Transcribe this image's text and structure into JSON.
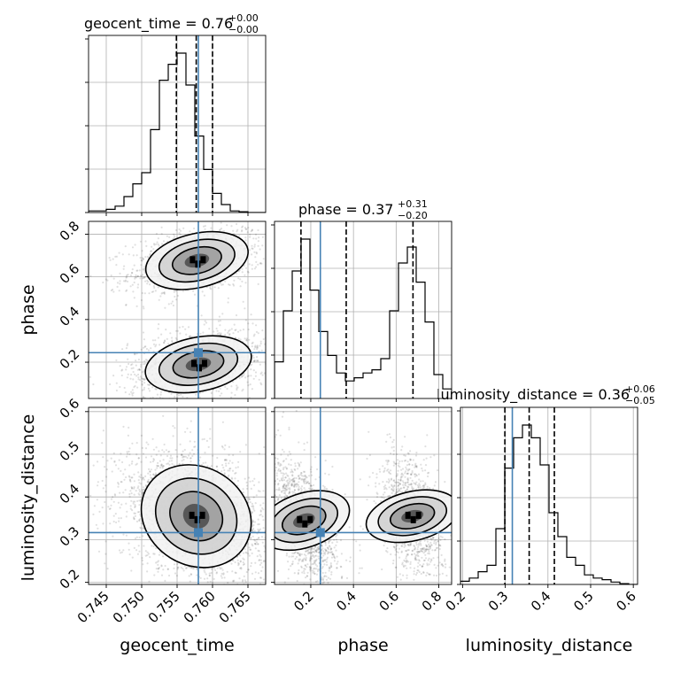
{
  "chart_data": {
    "type": "corner",
    "params": [
      {
        "name": "geocent_time",
        "axis_label": "geocent_time",
        "title_prefix": "geocent_time = 0.76",
        "title_plus": "+0.00",
        "title_minus": "−0.00",
        "range": [
          0.7425,
          0.7675
        ],
        "ticks": [
          "0.745",
          "0.750",
          "0.755",
          "0.760",
          "0.765"
        ],
        "tick_values": [
          0.745,
          0.75,
          0.755,
          0.76,
          0.765
        ],
        "truth": 0.758,
        "quantiles": [
          0.7549,
          0.7577,
          0.76
        ],
        "hist": {
          "edges_start": 0.7425,
          "bin_width": 0.00125,
          "counts": [
            0.01,
            0.01,
            0.02,
            0.04,
            0.1,
            0.18,
            0.25,
            0.52,
            0.83,
            0.93,
            1.0,
            0.8,
            0.48,
            0.27,
            0.12,
            0.05,
            0.01,
            0.005,
            0.0,
            0.0
          ]
        }
      },
      {
        "name": "phase",
        "axis_label": "phase",
        "title_prefix": "phase = 0.37",
        "title_plus": "+0.31",
        "title_minus": "−0.20",
        "range": [
          0.03,
          0.86
        ],
        "ticks": [
          "0.2",
          "0.4",
          "0.6",
          "0.8"
        ],
        "tick_values": [
          0.2,
          0.4,
          0.6,
          0.8
        ],
        "truth": 0.2448,
        "quantiles": [
          0.154,
          0.366,
          0.679
        ],
        "hist": {
          "edges_start": 0.03,
          "bin_width": 0.0415,
          "counts": [
            0.23,
            0.55,
            0.8,
            1.0,
            0.68,
            0.42,
            0.27,
            0.16,
            0.11,
            0.13,
            0.16,
            0.18,
            0.25,
            0.55,
            0.85,
            0.95,
            0.73,
            0.48,
            0.15,
            0.06
          ]
        }
      },
      {
        "name": "luminosity_distance",
        "axis_label": "luminosity_distance",
        "title_prefix": "luminosity_distance = 0.36",
        "title_plus": "+0.06",
        "title_minus": "−0.05",
        "range": [
          0.195,
          0.61
        ],
        "ticks": [
          "0.2",
          "0.3",
          "0.4",
          "0.5",
          "0.6"
        ],
        "tick_values": [
          0.2,
          0.3,
          0.4,
          0.5,
          0.6
        ],
        "truth": 0.3165,
        "quantiles": [
          0.299,
          0.356,
          0.415
        ],
        "hist": {
          "edges_start": 0.195,
          "bin_width": 0.02075,
          "counts": [
            0.02,
            0.04,
            0.08,
            0.12,
            0.35,
            0.73,
            0.92,
            1.0,
            0.92,
            0.75,
            0.45,
            0.3,
            0.17,
            0.12,
            0.06,
            0.04,
            0.03,
            0.015,
            0.005,
            0.0
          ]
        }
      }
    ],
    "colors": {
      "truth": "#4682b4",
      "contour": "#000000",
      "hist": "#000000",
      "grid": "#b0b0b0"
    },
    "grid": true,
    "scatter_pairs": [
      {
        "x": "geocent_time",
        "y": "phase",
        "modes": [
          {
            "cx": 0.7578,
            "cy": 0.676,
            "sx": 0.0032,
            "sy": 0.055,
            "rho": 0.35,
            "weight": 0.45
          },
          {
            "cx": 0.758,
            "cy": 0.19,
            "sx": 0.0033,
            "sy": 0.055,
            "rho": 0.3,
            "weight": 0.55
          }
        ]
      },
      {
        "x": "geocent_time",
        "y": "luminosity_distance",
        "modes": [
          {
            "cx": 0.7577,
            "cy": 0.355,
            "sx": 0.0035,
            "sy": 0.05,
            "rho": -0.3,
            "weight": 1.0
          }
        ]
      },
      {
        "x": "phase",
        "y": "luminosity_distance",
        "modes": [
          {
            "cx": 0.168,
            "cy": 0.345,
            "sx": 0.055,
            "sy": 0.048,
            "rho": -0.45,
            "weight": 0.55
          },
          {
            "cx": 0.676,
            "cy": 0.355,
            "sx": 0.05,
            "sy": 0.048,
            "rho": -0.35,
            "weight": 0.45
          }
        ]
      }
    ]
  }
}
